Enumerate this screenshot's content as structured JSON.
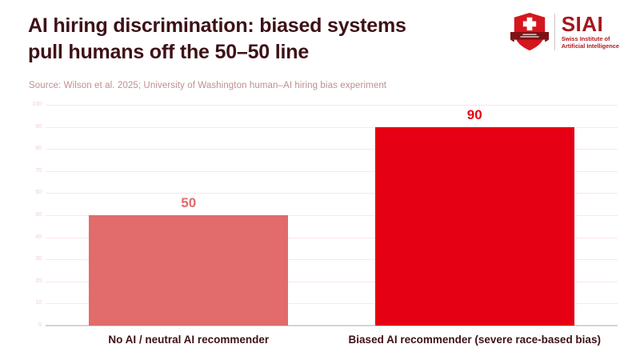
{
  "header": {
    "title_line1": "AI hiring discrimination: biased systems",
    "title_line2": "pull humans off the 50–50 line",
    "source": "Source: Wilson et al. 2025; University of Washington human–AI hiring bias experiment"
  },
  "logo": {
    "name": "SIAI",
    "subtitle_line1": "Swiss Institute of",
    "subtitle_line2": "Artificial Intelligence",
    "shield_icon": "swiss-shield-icon"
  },
  "colors": {
    "title_text": "#3e1117",
    "source_text": "#bd8f8f",
    "bar_neutral": "#e26b6b",
    "bar_biased": "#e60013",
    "grid_line": "#fbe7e5",
    "tick_label": "#f0cfcc",
    "axis_zero_line": "#d4d4d4",
    "logo_red": "#a5171d",
    "shield_red": "#d5161f",
    "shield_banner": "#7e1216"
  },
  "chart_data": {
    "type": "bar",
    "title": "AI hiring discrimination: biased systems pull humans off the 50–50 line",
    "categories": [
      "No AI / neutral AI recommender",
      "Biased AI recommender (severe race-based bias)"
    ],
    "values": [
      50,
      90
    ],
    "value_labels": [
      "50",
      "90"
    ],
    "bar_colors": [
      "#e26b6b",
      "#e60013"
    ],
    "label_colors": [
      "#e26b6b",
      "#e60013"
    ],
    "bar_names": [
      "bar-neutral-recommender",
      "bar-biased-recommender"
    ],
    "xlabel": "",
    "ylabel": "",
    "ylim": [
      0,
      100
    ],
    "yticks": [
      0,
      10,
      20,
      30,
      40,
      50,
      60,
      70,
      80,
      90,
      100
    ],
    "grid": true,
    "legend": false
  }
}
